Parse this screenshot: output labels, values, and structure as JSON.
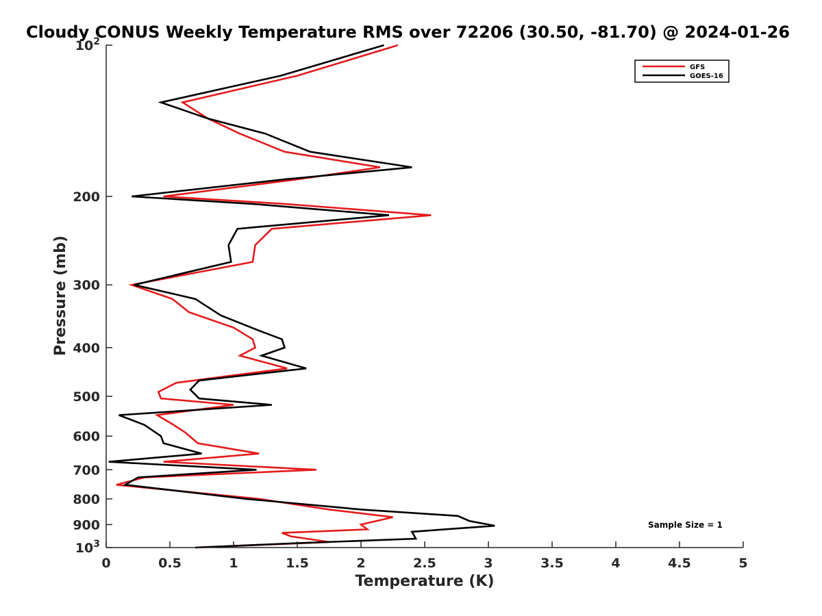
{
  "chart_data": {
    "type": "line",
    "title": "Cloudy CONUS Weekly Temperature RMS over 72206 (30.50, -81.70) @ 2024-01-26",
    "xlabel": "Temperature (K)",
    "ylabel": "Pressure (mb)",
    "xlim": [
      0,
      5
    ],
    "ylim": [
      100,
      1000
    ],
    "yscale": "log",
    "y_reversed": true,
    "x_ticks": [
      "0",
      "0.5",
      "1",
      "1.5",
      "2",
      "2.5",
      "3",
      "3.5",
      "4",
      "4.5",
      "5"
    ],
    "y_ticks": [
      {
        "value": 100,
        "base": "10",
        "exp": "2"
      },
      {
        "value": 200,
        "label": "200"
      },
      {
        "value": 300,
        "label": "300"
      },
      {
        "value": 400,
        "label": "400"
      },
      {
        "value": 500,
        "label": "500"
      },
      {
        "value": 600,
        "label": "600"
      },
      {
        "value": 700,
        "label": "700"
      },
      {
        "value": 800,
        "label": "800"
      },
      {
        "value": 900,
        "label": "900"
      },
      {
        "value": 1000,
        "base": "10",
        "exp": "3"
      }
    ],
    "legend": {
      "position": "top-right",
      "entries": [
        "GFS",
        "GOES-16"
      ]
    },
    "annotation": "Sample Size = 1",
    "series": [
      {
        "name": "GFS",
        "color": "#e41a1c",
        "points": [
          [
            2.29,
            100
          ],
          [
            1.5,
            115
          ],
          [
            0.6,
            130
          ],
          [
            0.8,
            140
          ],
          [
            1.05,
            150
          ],
          [
            1.4,
            163
          ],
          [
            2.15,
            175
          ],
          [
            1.5,
            185
          ],
          [
            0.45,
            200
          ],
          [
            1.4,
            207
          ],
          [
            2.55,
            218
          ],
          [
            1.3,
            232
          ],
          [
            1.17,
            250
          ],
          [
            1.15,
            270
          ],
          [
            0.2,
            300
          ],
          [
            0.52,
            320
          ],
          [
            0.65,
            340
          ],
          [
            1.0,
            365
          ],
          [
            1.15,
            385
          ],
          [
            1.17,
            400
          ],
          [
            1.05,
            415
          ],
          [
            1.42,
            440
          ],
          [
            0.55,
            470
          ],
          [
            0.41,
            490
          ],
          [
            0.43,
            505
          ],
          [
            1.0,
            520
          ],
          [
            0.4,
            545
          ],
          [
            0.52,
            568
          ],
          [
            0.62,
            590
          ],
          [
            0.72,
            620
          ],
          [
            1.2,
            650
          ],
          [
            0.45,
            675
          ],
          [
            1.65,
            700
          ],
          [
            0.3,
            725
          ],
          [
            0.08,
            750
          ],
          [
            1.2,
            800
          ],
          [
            1.75,
            840
          ],
          [
            2.25,
            870
          ],
          [
            2.0,
            900
          ],
          [
            2.05,
            920
          ],
          [
            1.38,
            935
          ],
          [
            1.45,
            950
          ],
          [
            1.75,
            975
          ],
          [
            0.7,
            1000
          ]
        ]
      },
      {
        "name": "GOES-16",
        "color": "#000000",
        "points": [
          [
            2.18,
            100
          ],
          [
            1.37,
            115
          ],
          [
            0.43,
            130
          ],
          [
            0.8,
            140
          ],
          [
            1.25,
            150
          ],
          [
            1.6,
            163
          ],
          [
            2.4,
            175
          ],
          [
            1.4,
            185
          ],
          [
            0.2,
            200
          ],
          [
            1.15,
            207
          ],
          [
            2.22,
            218
          ],
          [
            1.03,
            232
          ],
          [
            0.96,
            250
          ],
          [
            0.98,
            270
          ],
          [
            0.22,
            300
          ],
          [
            0.7,
            320
          ],
          [
            0.9,
            345
          ],
          [
            1.2,
            370
          ],
          [
            1.38,
            385
          ],
          [
            1.4,
            400
          ],
          [
            1.22,
            415
          ],
          [
            1.57,
            440
          ],
          [
            0.73,
            465
          ],
          [
            0.66,
            485
          ],
          [
            0.73,
            505
          ],
          [
            1.3,
            520
          ],
          [
            0.1,
            545
          ],
          [
            0.3,
            570
          ],
          [
            0.43,
            600
          ],
          [
            0.45,
            620
          ],
          [
            0.75,
            650
          ],
          [
            0.02,
            675
          ],
          [
            1.18,
            700
          ],
          [
            0.25,
            725
          ],
          [
            0.15,
            750
          ],
          [
            1.1,
            800
          ],
          [
            2.0,
            840
          ],
          [
            2.76,
            865
          ],
          [
            2.85,
            885
          ],
          [
            3.05,
            905
          ],
          [
            2.4,
            930
          ],
          [
            2.43,
            960
          ],
          [
            1.5,
            980
          ],
          [
            0.7,
            1000
          ]
        ]
      }
    ]
  }
}
